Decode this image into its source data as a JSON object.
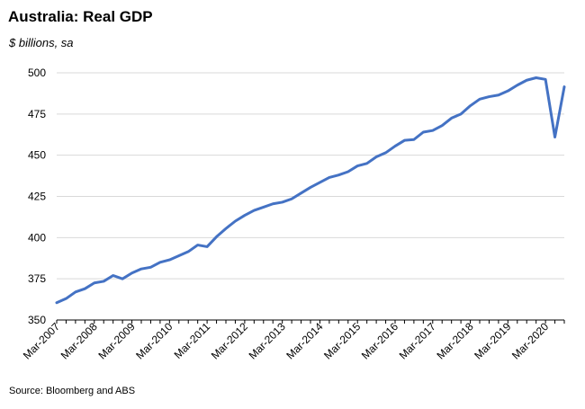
{
  "title": "Australia: Real GDP",
  "subtitle": "$ billions, sa",
  "source": "Source: Bloomberg and ABS",
  "chart_data": {
    "type": "line",
    "title": "Australia: Real GDP",
    "xlabel": "",
    "ylabel": "$ billions, sa",
    "ylim": [
      350,
      500
    ],
    "yticks": [
      350,
      375,
      400,
      425,
      450,
      475,
      500
    ],
    "grid": true,
    "legend": "none",
    "color": "#4472C4",
    "xtick_labels": [
      "Mar-2007",
      "Mar-2008",
      "Mar-2009",
      "Mar-2010",
      "Mar-2011",
      "Mar-2012",
      "Mar-2013",
      "Mar-2014",
      "Mar-2015",
      "Mar-2016",
      "Mar-2017",
      "Mar-2018",
      "Mar-2019",
      "Mar-2020"
    ],
    "x": [
      "Mar-2007",
      "Jun-2007",
      "Sep-2007",
      "Dec-2007",
      "Mar-2008",
      "Jun-2008",
      "Sep-2008",
      "Dec-2008",
      "Mar-2009",
      "Jun-2009",
      "Sep-2009",
      "Dec-2009",
      "Mar-2010",
      "Jun-2010",
      "Sep-2010",
      "Dec-2010",
      "Mar-2011",
      "Jun-2011",
      "Sep-2011",
      "Dec-2011",
      "Mar-2012",
      "Jun-2012",
      "Sep-2012",
      "Dec-2012",
      "Mar-2013",
      "Jun-2013",
      "Sep-2013",
      "Dec-2013",
      "Mar-2014",
      "Jun-2014",
      "Sep-2014",
      "Dec-2014",
      "Mar-2015",
      "Jun-2015",
      "Sep-2015",
      "Dec-2015",
      "Mar-2016",
      "Jun-2016",
      "Sep-2016",
      "Dec-2016",
      "Mar-2017",
      "Jun-2017",
      "Sep-2017",
      "Dec-2017",
      "Mar-2018",
      "Jun-2018",
      "Sep-2018",
      "Dec-2018",
      "Mar-2019",
      "Jun-2019",
      "Sep-2019",
      "Dec-2019",
      "Mar-2020",
      "Jun-2020",
      "Sep-2020"
    ],
    "series": [
      {
        "values": [
          360.5,
          363,
          367,
          369,
          372.5,
          373.5,
          377,
          375,
          378.5,
          381,
          382,
          385,
          386.5,
          389,
          391.5,
          395.5,
          394.5,
          400.5,
          405.5,
          410,
          413.5,
          416.5,
          418.5,
          420.5,
          421.5,
          423.5,
          427,
          430.5,
          433.5,
          436.5,
          438,
          440,
          443.5,
          445,
          449,
          451.5,
          455.5,
          459,
          459.5,
          464,
          465,
          468,
          472.5,
          475,
          480,
          484,
          485.5,
          486.5,
          489,
          492.5,
          495.5,
          497,
          496,
          461,
          491.5
        ]
      }
    ]
  }
}
